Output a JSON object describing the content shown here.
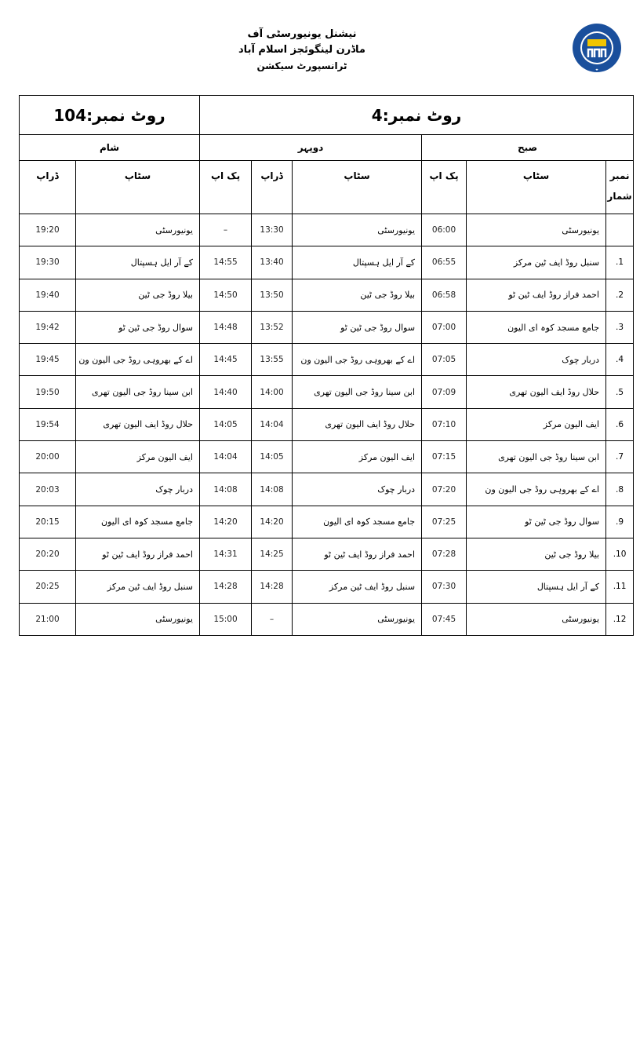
{
  "header": {
    "line1": "نیشنل یونیورسٹی آف ماڈرن لینگوئجز اسلام آباد",
    "line2": "ٹرانسپورٹ سیکشن",
    "logo_text": "NATIONAL UNIVERSITY OF MODERN LANGUAGES",
    "logo_color": "#1a4f9c",
    "logo_accent": "#f2c500"
  },
  "routes": {
    "route_a": "روٹ نمبر:4",
    "route_b": "روٹ نمبر:104"
  },
  "sections": {
    "morning": "صبح",
    "afternoon": "دوپہر",
    "evening": "شام"
  },
  "columns": {
    "serial": "نمبر شمار",
    "stop": "سٹاپ",
    "pickup": "پک اپ",
    "drop": "ڈراپ"
  },
  "rows": [
    {
      "serial": "",
      "m_stop": "یونیورسٹی",
      "m_pickup": "06:00",
      "a_stop": "یونیورسٹی",
      "a_drop": "13:30",
      "a_pickup": "–",
      "e_stop": "یونیورسٹی",
      "e_drop": "19:20"
    },
    {
      "serial": "1.",
      "m_stop": "سنبل روڈ ایف ٹین مرکز",
      "m_pickup": "06:55",
      "a_stop": "کے آر ایل ہسپتال",
      "a_drop": "13:40",
      "a_pickup": "14:55",
      "e_stop": "کے آر ایل ہسپتال",
      "e_drop": "19:30"
    },
    {
      "serial": "2.",
      "m_stop": "احمد فراز روڈ ایف ٹین ٹو",
      "m_pickup": "06:58",
      "a_stop": "بیلا روڈ جی ٹین",
      "a_drop": "13:50",
      "a_pickup": "14:50",
      "e_stop": "بیلا روڈ جی ٹین",
      "e_drop": "19:40"
    },
    {
      "serial": "3.",
      "m_stop": "جامع مسجد کوہ ای الیون",
      "m_pickup": "07:00",
      "a_stop": "سوال روڈ جی ٹین ٹو",
      "a_drop": "13:52",
      "a_pickup": "14:48",
      "e_stop": "سوال روڈ جی ٹین ٹو",
      "e_drop": "19:42"
    },
    {
      "serial": "4.",
      "m_stop": "دربار چوک",
      "m_pickup": "07:05",
      "a_stop": "اے کے بھروہی روڈ جی الیون ون",
      "a_drop": "13:55",
      "a_pickup": "14:45",
      "e_stop": "اے کے بھروہی روڈ جی الیون ون",
      "e_drop": "19:45"
    },
    {
      "serial": "5.",
      "m_stop": "حلال روڈ ایف الیون تھری",
      "m_pickup": "07:09",
      "a_stop": "ابن سینا روڈ جی الیون تھری",
      "a_drop": "14:00",
      "a_pickup": "14:40",
      "e_stop": "ابن سینا روڈ جی الیون تھری",
      "e_drop": "19:50"
    },
    {
      "serial": "6.",
      "m_stop": "ایف الیون مرکز",
      "m_pickup": "07:10",
      "a_stop": "حلال روڈ ایف الیون تھری",
      "a_drop": "14:04",
      "a_pickup": "14:05",
      "e_stop": "حلال روڈ ایف الیون تھری",
      "e_drop": "19:54"
    },
    {
      "serial": "7.",
      "m_stop": "ابن سینا روڈ جی الیون تھری",
      "m_pickup": "07:15",
      "a_stop": "ایف الیون مرکز",
      "a_drop": "14:05",
      "a_pickup": "14:04",
      "e_stop": "ایف الیون مرکز",
      "e_drop": "20:00"
    },
    {
      "serial": "8.",
      "m_stop": "اے کے بھروہی روڈ جی الیون ون",
      "m_pickup": "07:20",
      "a_stop": "دربار چوک",
      "a_drop": "14:08",
      "a_pickup": "14:08",
      "e_stop": "دربار چوک",
      "e_drop": "20:03"
    },
    {
      "serial": "9.",
      "m_stop": "سوال روڈ جی ٹین ٹو",
      "m_pickup": "07:25",
      "a_stop": "جامع مسجد کوہ ای الیون",
      "a_drop": "14:20",
      "a_pickup": "14:20",
      "e_stop": "جامع مسجد کوہ ای الیون",
      "e_drop": "20:15"
    },
    {
      "serial": "10.",
      "m_stop": "بیلا روڈ جی ٹین",
      "m_pickup": "07:28",
      "a_stop": "احمد فراز روڈ ایف ٹین ٹو",
      "a_drop": "14:25",
      "a_pickup": "14:31",
      "e_stop": "احمد فراز روڈ ایف ٹین ٹو",
      "e_drop": "20:20"
    },
    {
      "serial": "11.",
      "m_stop": "کے آر ایل ہسپتال",
      "m_pickup": "07:30",
      "a_stop": "سنبل روڈ ایف ٹین مرکز",
      "a_drop": "14:28",
      "a_pickup": "14:28",
      "e_stop": "سنبل روڈ ایف ٹین مرکز",
      "e_drop": "20:25"
    },
    {
      "serial": "12.",
      "m_stop": "یونیورسٹی",
      "m_pickup": "07:45",
      "a_stop": "یونیورسٹی",
      "a_drop": "–",
      "a_pickup": "15:00",
      "e_stop": "یونیورسٹی",
      "e_drop": "21:00"
    }
  ]
}
